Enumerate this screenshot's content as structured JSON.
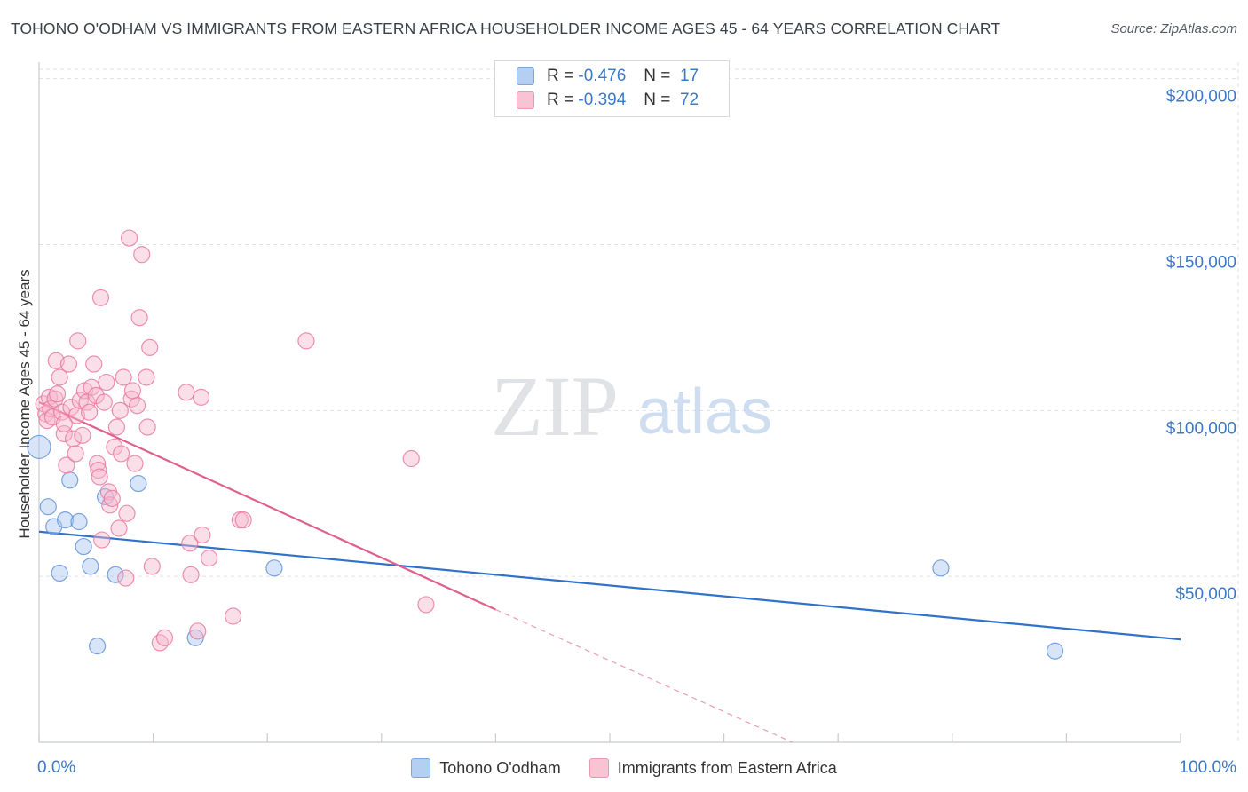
{
  "title": "TOHONO O'ODHAM VS IMMIGRANTS FROM EASTERN AFRICA HOUSEHOLDER INCOME AGES 45 - 64 YEARS CORRELATION CHART",
  "source": "Source: ZipAtlas.com",
  "watermark": {
    "zip": "ZIP",
    "atlas": "atlas"
  },
  "colors": {
    "blue": "#5b8fd6",
    "blue_fill": "#a9c6f0",
    "pink": "#e8769c",
    "pink_fill": "#f6b9cc",
    "axis_text": "#3c78c8",
    "grid": "#dde1e6"
  },
  "legend": {
    "rows": [
      {
        "r_label": "R =",
        "r_value": "-0.476",
        "n_label": "N =",
        "n_value": "17"
      },
      {
        "r_label": "R =",
        "r_value": "-0.394",
        "n_label": "N =",
        "n_value": "72"
      }
    ]
  },
  "chart_data": {
    "type": "scatter",
    "title": "TOHONO O'ODHAM VS IMMIGRANTS FROM EASTERN AFRICA HOUSEHOLDER INCOME AGES 45 - 64 YEARS CORRELATION CHART",
    "xlabel": "",
    "ylabel": "Householder Income Ages 45 - 64 years",
    "xlim": [
      0,
      100
    ],
    "ylim": [
      0,
      205000
    ],
    "x_tick_labels": [
      "0.0%",
      "100.0%"
    ],
    "y_ticks": [
      50000,
      100000,
      150000,
      200000
    ],
    "y_tick_labels": [
      "$50,000",
      "$100,000",
      "$150,000",
      "$200,000"
    ],
    "grid": true,
    "legend_position": "top-center",
    "series": [
      {
        "name": "Tohono O'odham",
        "color": "#5b8fd6",
        "points": [
          [
            0.0,
            89000
          ],
          [
            0.8,
            71000
          ],
          [
            1.3,
            65000
          ],
          [
            1.8,
            51000
          ],
          [
            2.3,
            67000
          ],
          [
            2.7,
            79000
          ],
          [
            3.5,
            66500
          ],
          [
            3.9,
            59000
          ],
          [
            4.5,
            53000
          ],
          [
            5.1,
            29000
          ],
          [
            5.8,
            74000
          ],
          [
            6.7,
            50500
          ],
          [
            8.7,
            78000
          ],
          [
            13.7,
            31500
          ],
          [
            20.6,
            52500
          ],
          [
            79.0,
            52500
          ],
          [
            89.0,
            27500
          ]
        ],
        "trend": {
          "x1": 0,
          "y1": 63500,
          "x2": 100,
          "y2": 31000
        }
      },
      {
        "name": "Immigrants from Eastern Africa",
        "color": "#e8769c",
        "points": [
          [
            0.4,
            102000
          ],
          [
            0.6,
            99000
          ],
          [
            0.7,
            97000
          ],
          [
            0.9,
            104000
          ],
          [
            1.0,
            100500
          ],
          [
            1.2,
            98000
          ],
          [
            1.4,
            103500
          ],
          [
            1.6,
            105000
          ],
          [
            1.8,
            110000
          ],
          [
            1.5,
            115000
          ],
          [
            2.0,
            99500
          ],
          [
            2.2,
            93000
          ],
          [
            2.4,
            83500
          ],
          [
            2.6,
            114000
          ],
          [
            2.8,
            101000
          ],
          [
            3.0,
            91500
          ],
          [
            3.2,
            87000
          ],
          [
            3.3,
            98500
          ],
          [
            3.4,
            121000
          ],
          [
            3.6,
            103000
          ],
          [
            3.8,
            92500
          ],
          [
            4.0,
            106000
          ],
          [
            4.2,
            102500
          ],
          [
            4.4,
            99500
          ],
          [
            4.6,
            107000
          ],
          [
            4.8,
            114000
          ],
          [
            5.0,
            104500
          ],
          [
            5.1,
            84000
          ],
          [
            5.2,
            82000
          ],
          [
            5.3,
            80000
          ],
          [
            5.4,
            134000
          ],
          [
            5.5,
            61000
          ],
          [
            5.7,
            102500
          ],
          [
            5.9,
            108500
          ],
          [
            6.1,
            75500
          ],
          [
            6.2,
            71500
          ],
          [
            6.4,
            73500
          ],
          [
            6.6,
            89000
          ],
          [
            6.8,
            95000
          ],
          [
            7.0,
            64500
          ],
          [
            7.1,
            100000
          ],
          [
            7.2,
            87000
          ],
          [
            7.4,
            110000
          ],
          [
            7.6,
            49500
          ],
          [
            7.7,
            69000
          ],
          [
            7.9,
            152000
          ],
          [
            8.1,
            103500
          ],
          [
            8.2,
            106000
          ],
          [
            8.4,
            84000
          ],
          [
            8.6,
            101500
          ],
          [
            8.8,
            128000
          ],
          [
            9.0,
            147000
          ],
          [
            9.4,
            110000
          ],
          [
            9.5,
            95000
          ],
          [
            9.7,
            119000
          ],
          [
            9.9,
            53000
          ],
          [
            10.6,
            30000
          ],
          [
            11.0,
            31500
          ],
          [
            12.9,
            105500
          ],
          [
            13.2,
            60000
          ],
          [
            13.3,
            50500
          ],
          [
            13.9,
            33500
          ],
          [
            14.3,
            62500
          ],
          [
            14.2,
            104000
          ],
          [
            14.9,
            55500
          ],
          [
            17.0,
            38000
          ],
          [
            17.6,
            67000
          ],
          [
            17.9,
            67000
          ],
          [
            23.4,
            121000
          ],
          [
            32.6,
            85500
          ],
          [
            33.9,
            41500
          ],
          [
            2.2,
            96000
          ]
        ],
        "trend": {
          "x1": 0,
          "y1": 102500,
          "x2": 40,
          "y2": 40000
        },
        "trend_dashed": {
          "x1": 40,
          "y1": 40000,
          "x2": 66,
          "y2": 0
        }
      }
    ]
  }
}
